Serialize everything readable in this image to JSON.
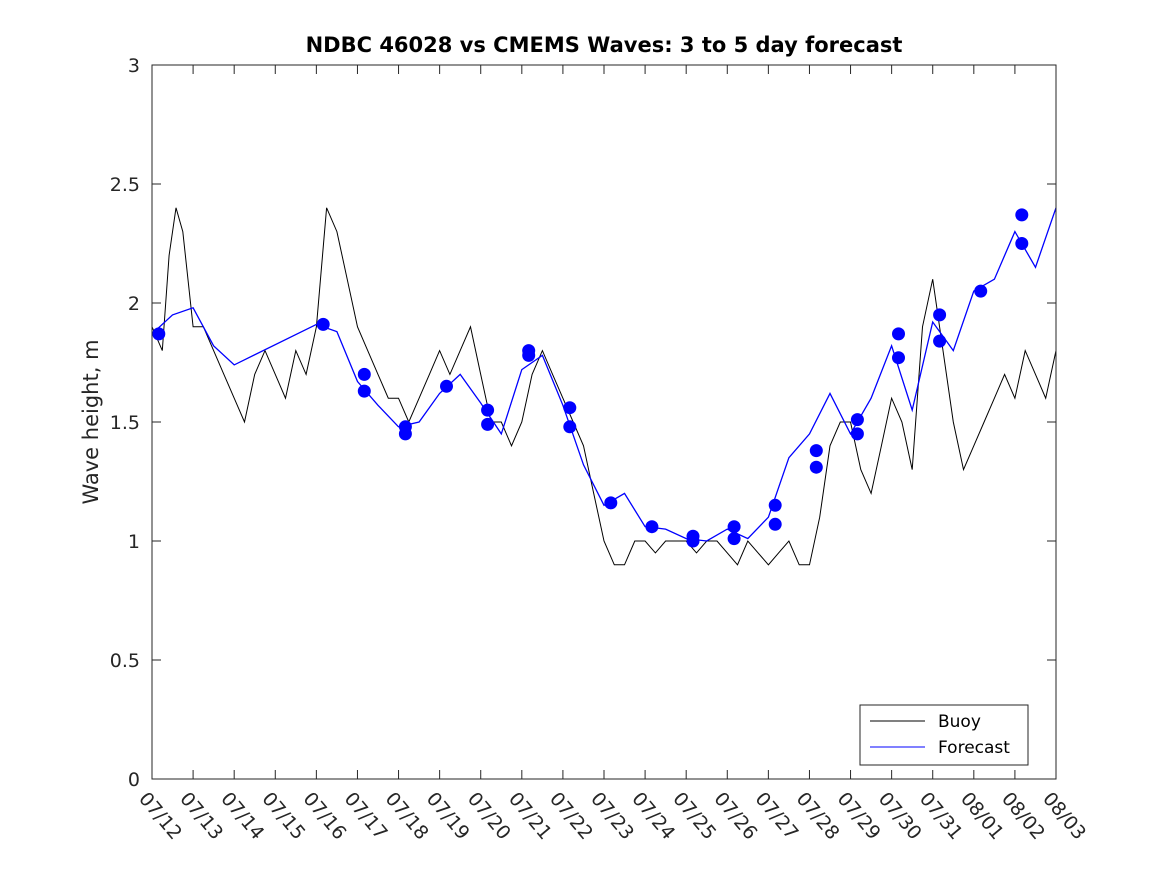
{
  "chart_data": {
    "type": "line",
    "title": "NDBC 46028 vs CMEMS Waves: 3 to 5 day forecast",
    "xlabel": "",
    "ylabel": "Wave height, m",
    "xlim": [
      "07/12",
      "08/03"
    ],
    "ylim": [
      0,
      3
    ],
    "x_tick_labels": [
      "07/12",
      "07/13",
      "07/14",
      "07/15",
      "07/16",
      "07/17",
      "07/18",
      "07/19",
      "07/20",
      "07/21",
      "07/22",
      "07/23",
      "07/24",
      "07/25",
      "07/26",
      "07/27",
      "07/28",
      "07/29",
      "07/30",
      "07/31",
      "08/01",
      "08/02",
      "08/03"
    ],
    "y_ticks": [
      0,
      0.5,
      1,
      1.5,
      2,
      2.5,
      3
    ],
    "y_tick_labels": [
      "0",
      "0.5",
      "1",
      "1.5",
      "2",
      "2.5",
      "3"
    ],
    "legend": {
      "position": "bottom-right",
      "entries": [
        "Buoy",
        "Forecast"
      ]
    },
    "colors": {
      "buoy": "#000000",
      "forecast": "#0000ff"
    },
    "series": [
      {
        "name": "Buoy",
        "x": [
          "07/12 00:00",
          "07/12 06:00",
          "07/12 10:00",
          "07/12 14:00",
          "07/12 18:00",
          "07/13 00:00",
          "07/13 06:00",
          "07/13 12:00",
          "07/13 18:00",
          "07/14 00:00",
          "07/14 06:00",
          "07/14 12:00",
          "07/14 18:00",
          "07/15 00:00",
          "07/15 06:00",
          "07/15 12:00",
          "07/15 18:00",
          "07/16 00:00",
          "07/16 06:00",
          "07/16 12:00",
          "07/16 18:00",
          "07/17 00:00",
          "07/17 06:00",
          "07/17 12:00",
          "07/17 18:00",
          "07/18 00:00",
          "07/18 06:00",
          "07/18 12:00",
          "07/18 18:00",
          "07/19 00:00",
          "07/19 06:00",
          "07/19 12:00",
          "07/19 18:00",
          "07/20 00:00",
          "07/20 06:00",
          "07/20 12:00",
          "07/20 18:00",
          "07/21 00:00",
          "07/21 06:00",
          "07/21 12:00",
          "07/21 18:00",
          "07/22 00:00",
          "07/22 06:00",
          "07/22 12:00",
          "07/22 18:00",
          "07/23 00:00",
          "07/23 06:00",
          "07/23 12:00",
          "07/23 18:00",
          "07/24 00:00",
          "07/24 06:00",
          "07/24 12:00",
          "07/24 18:00",
          "07/25 00:00",
          "07/25 06:00",
          "07/25 12:00",
          "07/25 18:00",
          "07/26 00:00",
          "07/26 06:00",
          "07/26 12:00",
          "07/26 18:00",
          "07/27 00:00",
          "07/27 06:00",
          "07/27 12:00",
          "07/27 18:00",
          "07/28 00:00",
          "07/28 06:00",
          "07/28 12:00",
          "07/28 18:00",
          "07/29 00:00",
          "07/29 06:00",
          "07/29 12:00",
          "07/29 18:00",
          "07/30 00:00",
          "07/30 06:00",
          "07/30 12:00",
          "07/30 18:00",
          "07/31 00:00",
          "07/31 06:00",
          "07/31 12:00",
          "07/31 18:00",
          "08/01 00:00",
          "08/01 06:00",
          "08/01 12:00",
          "08/01 18:00",
          "08/02 00:00",
          "08/02 06:00",
          "08/02 12:00",
          "08/02 18:00",
          "08/03 00:00"
        ],
        "values": [
          1.9,
          1.8,
          2.2,
          2.4,
          2.3,
          1.9,
          1.9,
          1.8,
          1.7,
          1.6,
          1.5,
          1.7,
          1.8,
          1.7,
          1.6,
          1.8,
          1.7,
          1.9,
          2.4,
          2.3,
          2.1,
          1.9,
          1.8,
          1.7,
          1.6,
          1.6,
          1.5,
          1.6,
          1.7,
          1.8,
          1.7,
          1.8,
          1.9,
          1.7,
          1.5,
          1.5,
          1.4,
          1.5,
          1.7,
          1.8,
          1.7,
          1.6,
          1.5,
          1.4,
          1.2,
          1.0,
          0.9,
          0.9,
          1.0,
          1.0,
          0.95,
          1.0,
          1.0,
          1.0,
          0.95,
          1.0,
          1.0,
          0.95,
          0.9,
          1.0,
          0.95,
          0.9,
          0.95,
          1.0,
          0.9,
          0.9,
          1.1,
          1.4,
          1.5,
          1.5,
          1.3,
          1.2,
          1.4,
          1.6,
          1.5,
          1.3,
          1.9,
          2.1,
          1.8,
          1.5,
          1.3,
          1.4,
          1.5,
          1.6,
          1.7,
          1.6,
          1.8,
          1.7,
          1.6,
          1.8
        ]
      },
      {
        "name": "Forecast",
        "x": [
          "07/12 00:00",
          "07/12 12:00",
          "07/13 00:00",
          "07/13 12:00",
          "07/14 00:00",
          "07/16 00:00",
          "07/16 12:00",
          "07/17 00:00",
          "07/17 12:00",
          "07/18 00:00",
          "07/18 12:00",
          "07/19 00:00",
          "07/19 12:00",
          "07/20 00:00",
          "07/20 12:00",
          "07/21 00:00",
          "07/21 12:00",
          "07/22 00:00",
          "07/22 12:00",
          "07/23 00:00",
          "07/23 12:00",
          "07/24 00:00",
          "07/24 12:00",
          "07/25 00:00",
          "07/25 12:00",
          "07/26 00:00",
          "07/26 12:00",
          "07/27 00:00",
          "07/27 12:00",
          "07/28 00:00",
          "07/28 12:00",
          "07/29 00:00",
          "07/29 12:00",
          "07/30 00:00",
          "07/30 12:00",
          "07/31 00:00",
          "07/31 12:00",
          "08/01 00:00",
          "08/01 12:00",
          "08/02 00:00",
          "08/02 12:00",
          "08/03 00:00"
        ],
        "values": [
          1.87,
          1.95,
          1.98,
          1.82,
          1.74,
          1.91,
          1.88,
          1.67,
          1.57,
          1.48,
          1.5,
          1.62,
          1.7,
          1.58,
          1.45,
          1.72,
          1.78,
          1.57,
          1.32,
          1.15,
          1.2,
          1.06,
          1.05,
          1.01,
          1.0,
          1.05,
          1.01,
          1.1,
          1.35,
          1.45,
          1.62,
          1.45,
          1.6,
          1.82,
          1.55,
          1.92,
          1.8,
          2.05,
          2.1,
          2.3,
          2.15,
          2.4
        ]
      }
    ],
    "markers": {
      "name": "Forecast",
      "x": [
        "07/12 04:00",
        "07/16 04:00",
        "07/17 04:00",
        "07/17 04:00",
        "07/18 04:00",
        "07/18 04:00",
        "07/19 04:00",
        "07/20 04:00",
        "07/20 04:00",
        "07/21 04:00",
        "07/21 04:00",
        "07/22 04:00",
        "07/22 04:00",
        "07/23 04:00",
        "07/24 04:00",
        "07/25 04:00",
        "07/25 04:00",
        "07/26 04:00",
        "07/26 04:00",
        "07/27 04:00",
        "07/27 04:00",
        "07/28 04:00",
        "07/28 04:00",
        "07/29 04:00",
        "07/29 04:00",
        "07/30 04:00",
        "07/30 04:00",
        "07/31 04:00",
        "07/31 04:00",
        "08/01 04:00",
        "08/02 04:00",
        "08/02 04:00"
      ],
      "values": [
        1.87,
        1.91,
        1.7,
        1.63,
        1.48,
        1.45,
        1.65,
        1.55,
        1.49,
        1.8,
        1.78,
        1.56,
        1.48,
        1.16,
        1.06,
        1.02,
        1.0,
        1.06,
        1.01,
        1.15,
        1.07,
        1.38,
        1.31,
        1.51,
        1.45,
        1.87,
        1.77,
        1.95,
        1.84,
        2.05,
        2.37,
        2.25
      ]
    },
    "grid": false
  }
}
